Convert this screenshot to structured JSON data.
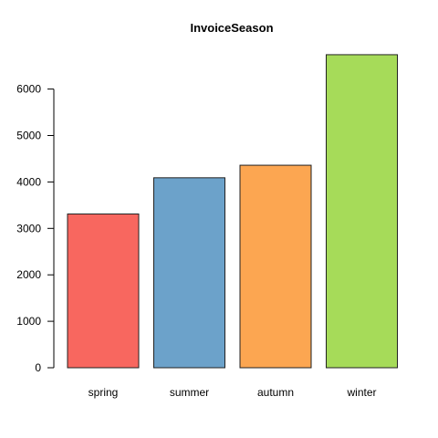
{
  "chart_data": {
    "type": "bar",
    "title": "InvoiceSeason",
    "xlabel": "",
    "ylabel": "",
    "categories": [
      "spring",
      "summer",
      "autumn",
      "winter"
    ],
    "values": [
      3310,
      4090,
      4360,
      6740
    ],
    "colors": [
      "#F8675F",
      "#6CA2CA",
      "#FCA651",
      "#A6DB59"
    ],
    "ylim": [
      0,
      6740
    ],
    "y_ticks": [
      0,
      1000,
      2000,
      3000,
      4000,
      5000,
      6000
    ],
    "y_tick_labels": [
      "0",
      "1000",
      "2000",
      "3000",
      "4000",
      "5000",
      "6000"
    ],
    "grid": false,
    "legend": "none"
  }
}
